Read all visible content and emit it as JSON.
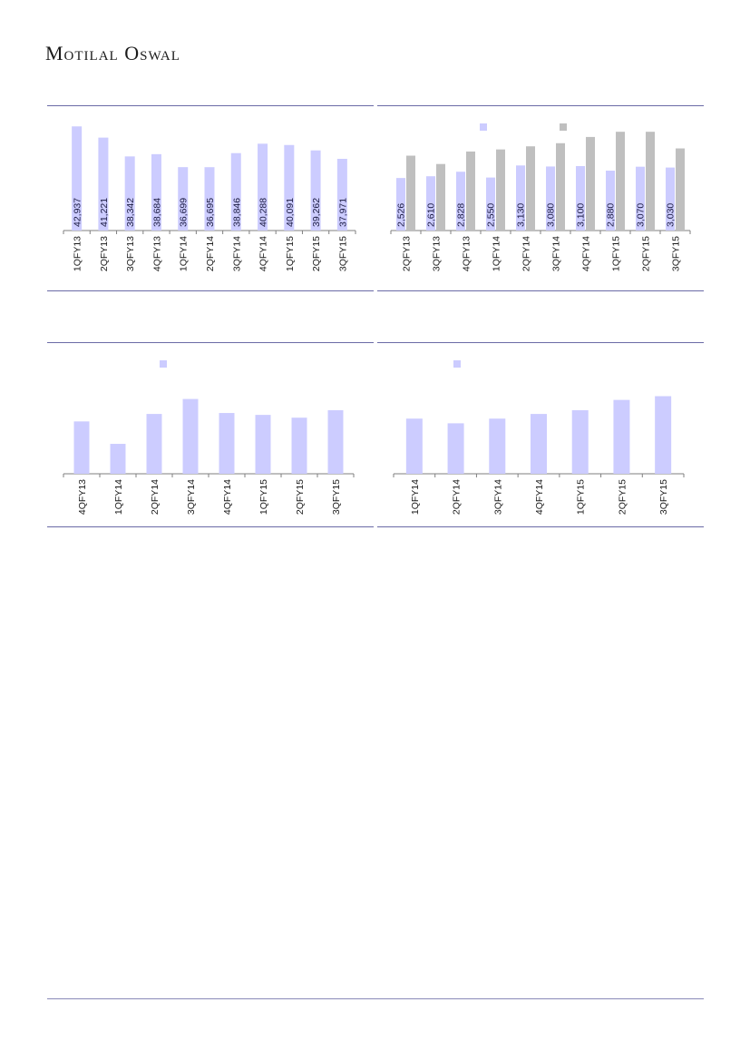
{
  "header": {
    "brand": "Motilal Oswal"
  },
  "colors": {
    "bar_primary": "#ccccff",
    "bar_secondary": "#bfbfbf",
    "rule": "#6a6aa6"
  },
  "chart_data": [
    {
      "type": "bar",
      "categories": [
        "1QFY13",
        "2QFY13",
        "3QFY13",
        "4QFY13",
        "1QFY14",
        "2QFY14",
        "3QFY14",
        "4QFY14",
        "1QFY15",
        "2QFY15",
        "3QFY15"
      ],
      "series": [
        {
          "values": [
            42937,
            41221,
            38342,
            38684,
            36699,
            36695,
            38846,
            40288,
            40091,
            39262,
            37971
          ]
        }
      ],
      "data_labels": [
        "42,937",
        "41,221",
        "38,342",
        "38,684",
        "36,699",
        "36,695",
        "38,846",
        "40,288",
        "40,091",
        "39,262",
        "37,971"
      ],
      "ylim": [
        27000,
        44500
      ],
      "grid": false,
      "legend": false
    },
    {
      "type": "bar",
      "categories": [
        "2QFY13",
        "3QFY13",
        "4QFY13",
        "1QFY14",
        "2QFY14",
        "3QFY14",
        "4QFY14",
        "1QFY15",
        "2QFY15",
        "3QFY15"
      ],
      "series": [
        {
          "values": [
            2526,
            2610,
            2828,
            2550,
            3130,
            3080,
            3100,
            2880,
            3070,
            3030
          ]
        },
        {
          "values": [
            3600,
            3200,
            3800,
            3900,
            4050,
            4200,
            4500,
            4750,
            4750,
            3950
          ]
        }
      ],
      "data_labels": [
        "2,526",
        "2,610",
        "2,828",
        "2,550",
        "3,130",
        "3,080",
        "3,100",
        "2,880",
        "3,070",
        "3,030"
      ],
      "ylim": [
        0,
        5500
      ],
      "grid": false,
      "legend": "top-center"
    },
    {
      "type": "bar",
      "categories": [
        "4QFY13",
        "1QFY14",
        "2QFY14",
        "3QFY14",
        "4QFY14",
        "1QFY15",
        "2QFY15",
        "3QFY15"
      ],
      "series": [
        {
          "values": [
            56,
            32,
            64,
            80,
            65,
            63,
            60,
            68
          ]
        }
      ],
      "ylim": [
        0,
        100
      ],
      "grid": false,
      "legend": "top-center"
    },
    {
      "type": "bar",
      "categories": [
        "1QFY14",
        "2QFY14",
        "3QFY14",
        "4QFY14",
        "1QFY15",
        "2QFY15",
        "3QFY15"
      ],
      "series": [
        {
          "values": [
            59,
            54,
            59,
            64,
            68,
            79,
            83
          ]
        }
      ],
      "ylim": [
        0,
        100
      ],
      "grid": false,
      "legend": "top-center"
    }
  ]
}
